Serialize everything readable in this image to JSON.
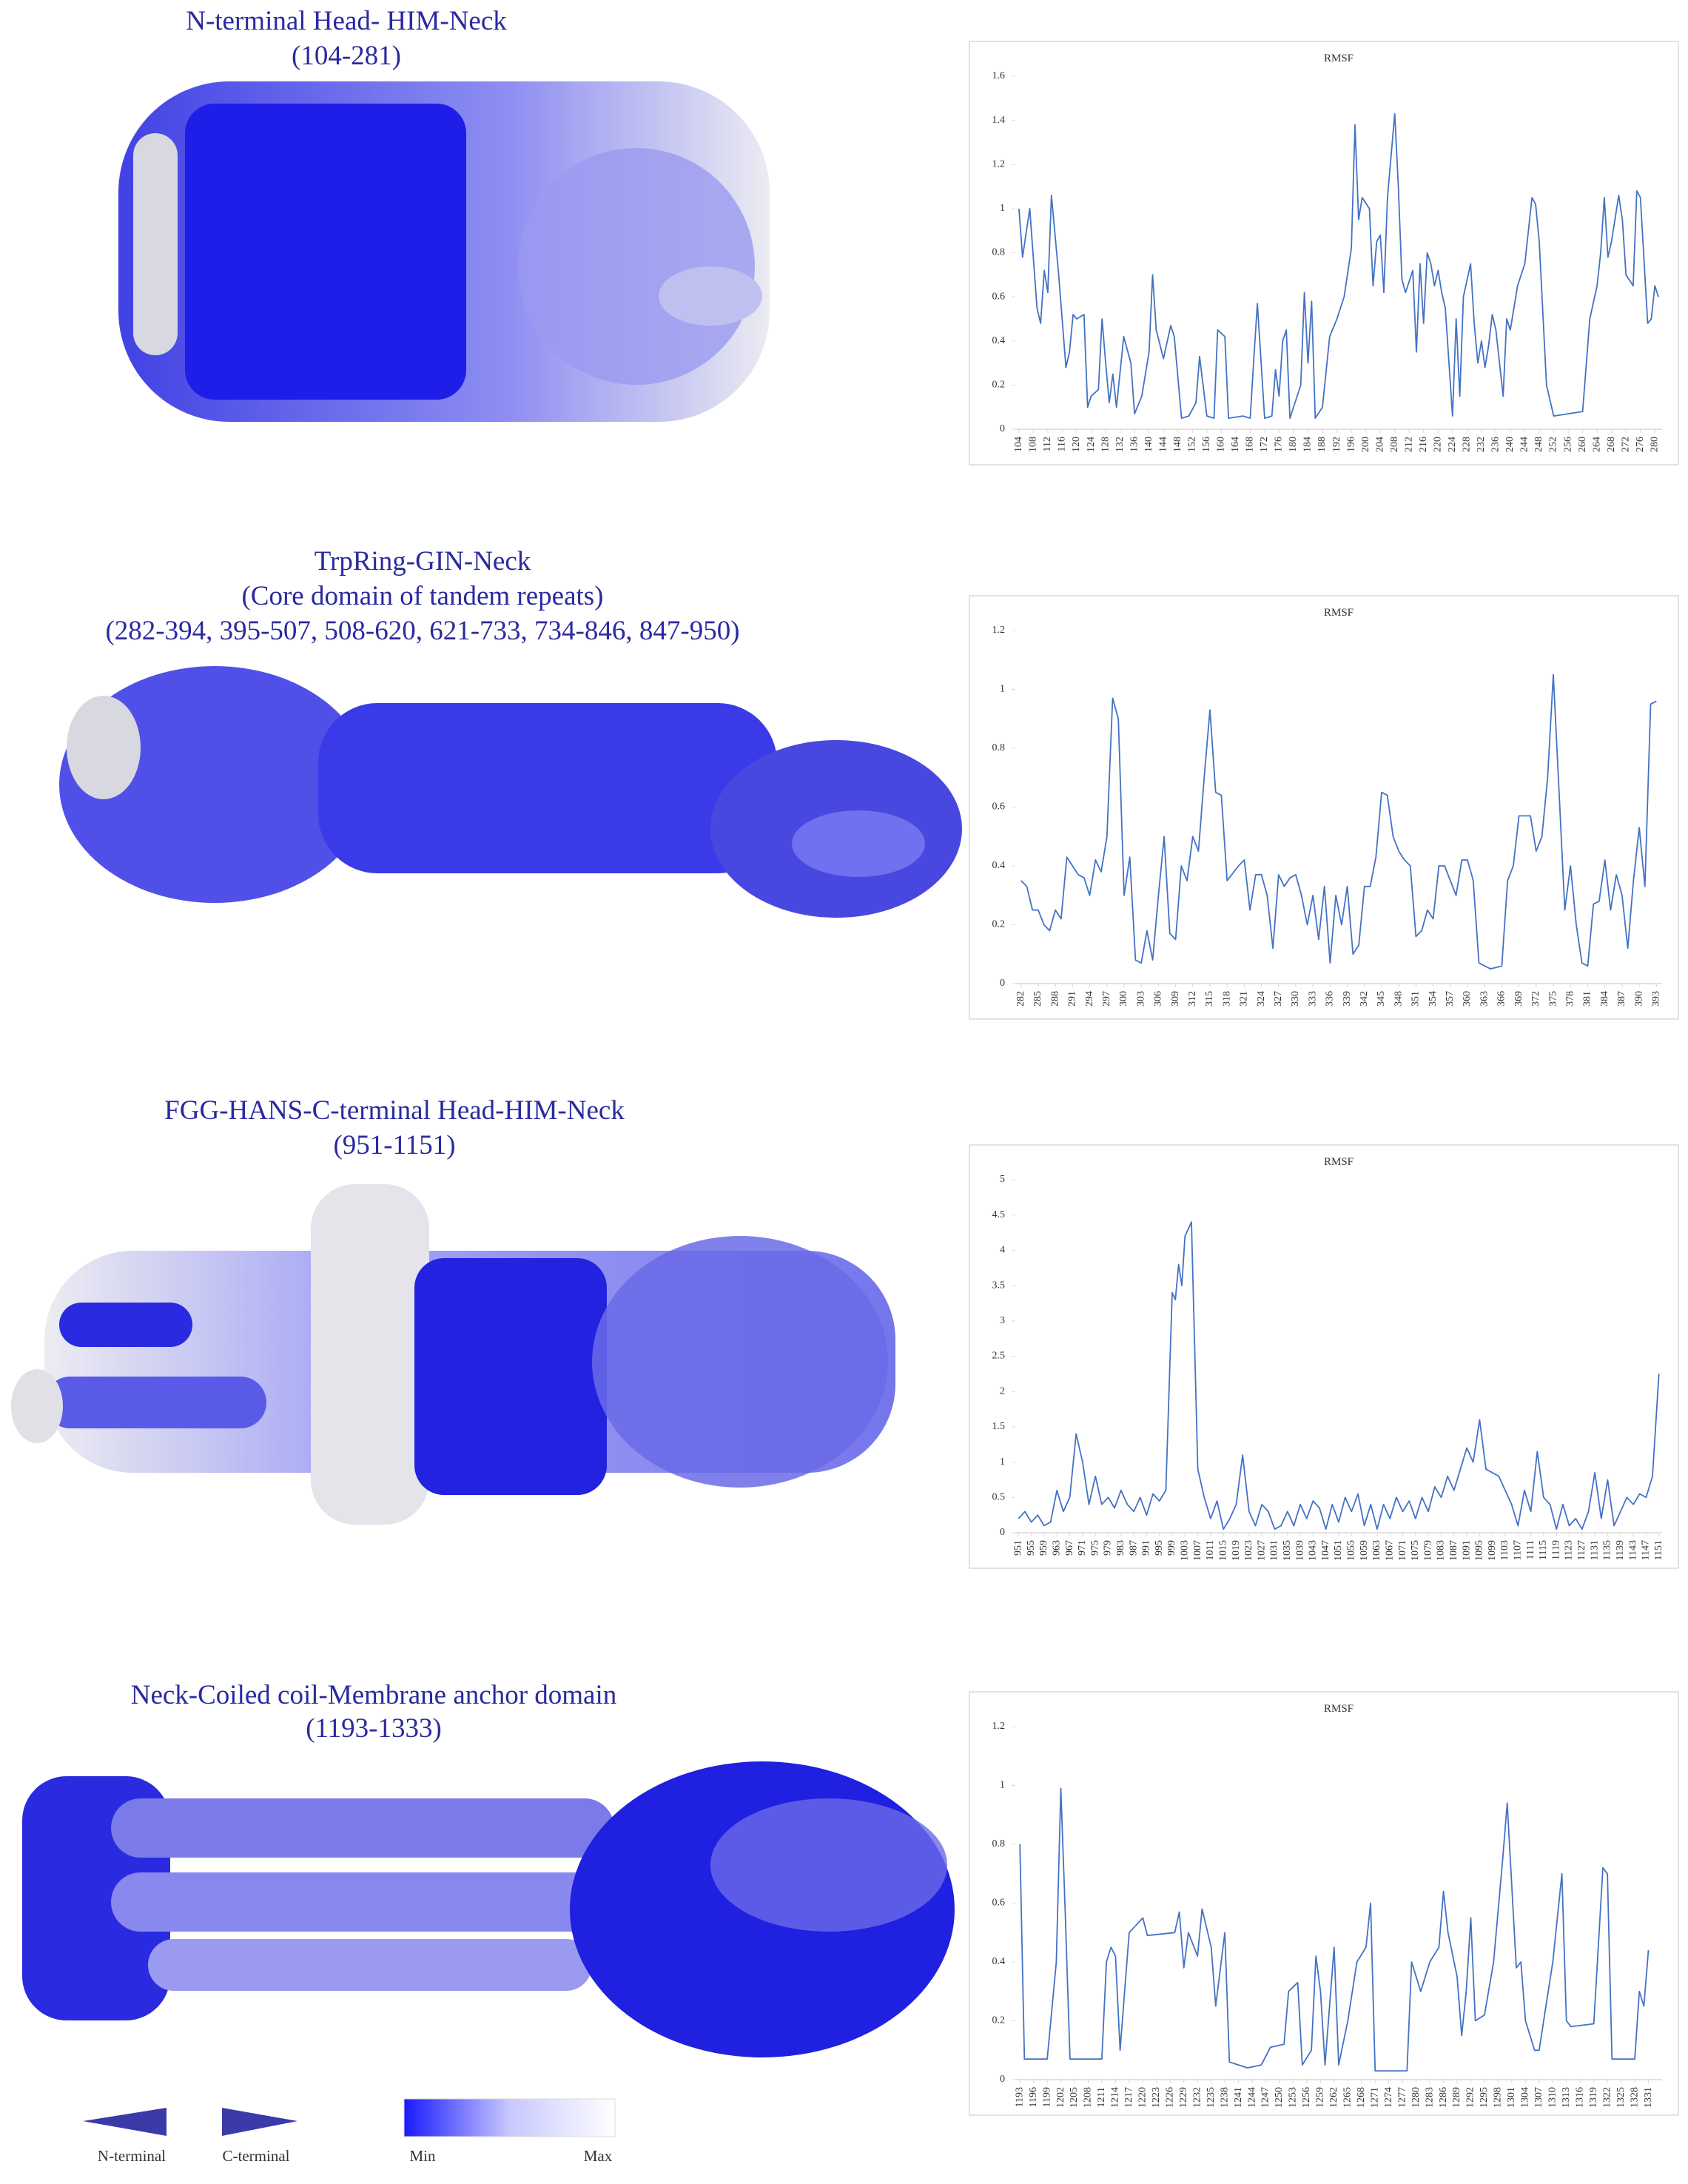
{
  "panels": [
    {
      "heading": [
        "N-terminal Head- HIM-Neck",
        "(104-281)"
      ]
    },
    {
      "heading": [
        "TrpRing-GIN-Neck",
        "(Core domain of tandem repeats)",
        "(282-394, 395-507, 508-620, 621-733, 734-846, 847-950)"
      ]
    },
    {
      "heading": [
        "FGG-HANS-C-terminal Head-HIM-Neck",
        "(951-1151)"
      ]
    },
    {
      "heading": [
        "Neck-Coiled coil-Membrane anchor domain",
        "(1193-1333)"
      ]
    }
  ],
  "legend": {
    "n_terminal": "N-terminal",
    "c_terminal": "C-terminal",
    "min": "Min",
    "max": "Max"
  },
  "chart_data": [
    {
      "type": "line",
      "title": "RMSF",
      "color": "#4472c4",
      "xlim": [
        103,
        282
      ],
      "ylim": [
        0,
        1.6
      ],
      "yticks": [
        0,
        0.2,
        0.4,
        0.6,
        0.8,
        1,
        1.2,
        1.4,
        1.6
      ],
      "xticks": [
        104,
        108,
        112,
        116,
        120,
        124,
        128,
        132,
        136,
        140,
        144,
        148,
        152,
        156,
        160,
        164,
        168,
        172,
        176,
        180,
        184,
        188,
        192,
        196,
        200,
        204,
        208,
        212,
        216,
        220,
        224,
        228,
        232,
        236,
        240,
        244,
        248,
        252,
        256,
        260,
        264,
        268,
        272,
        276,
        280
      ],
      "x": [
        104,
        105,
        107,
        109,
        110,
        111,
        112,
        113,
        115,
        117,
        118,
        119,
        120,
        122,
        123,
        124,
        126,
        127,
        128,
        129,
        130,
        131,
        133,
        135,
        136,
        138,
        140,
        141,
        142,
        144,
        146,
        147,
        149,
        151,
        153,
        154,
        156,
        158,
        159,
        161,
        162,
        166,
        168,
        169,
        170,
        172,
        174,
        175,
        176,
        177,
        178,
        179,
        182,
        183,
        184,
        185,
        186,
        188,
        190,
        192,
        194,
        196,
        197,
        198,
        199,
        201,
        202,
        203,
        204,
        205,
        206,
        208,
        209,
        210,
        211,
        213,
        214,
        215,
        216,
        217,
        218,
        219,
        220,
        221,
        222,
        224,
        225,
        226,
        227,
        229,
        230,
        231,
        232,
        233,
        234,
        235,
        236,
        238,
        239,
        240,
        242,
        244,
        246,
        247,
        248,
        250,
        252,
        260,
        262,
        264,
        265,
        266,
        267,
        268,
        270,
        271,
        272,
        274,
        275,
        276,
        278,
        279,
        280,
        281
      ],
      "values": [
        1.0,
        0.78,
        1.0,
        0.55,
        0.48,
        0.72,
        0.62,
        1.06,
        0.7,
        0.28,
        0.35,
        0.52,
        0.5,
        0.52,
        0.1,
        0.15,
        0.18,
        0.5,
        0.3,
        0.12,
        0.25,
        0.1,
        0.42,
        0.3,
        0.07,
        0.15,
        0.35,
        0.7,
        0.45,
        0.32,
        0.47,
        0.42,
        0.05,
        0.06,
        0.12,
        0.33,
        0.06,
        0.05,
        0.45,
        0.42,
        0.05,
        0.06,
        0.05,
        0.32,
        0.57,
        0.05,
        0.06,
        0.27,
        0.15,
        0.4,
        0.45,
        0.05,
        0.2,
        0.62,
        0.3,
        0.58,
        0.05,
        0.1,
        0.42,
        0.5,
        0.6,
        0.82,
        1.38,
        0.95,
        1.05,
        1.0,
        0.65,
        0.85,
        0.88,
        0.62,
        1.05,
        1.43,
        1.1,
        0.68,
        0.62,
        0.72,
        0.35,
        0.75,
        0.48,
        0.8,
        0.75,
        0.65,
        0.72,
        0.62,
        0.55,
        0.06,
        0.5,
        0.15,
        0.6,
        0.75,
        0.48,
        0.3,
        0.4,
        0.28,
        0.38,
        0.52,
        0.45,
        0.15,
        0.5,
        0.45,
        0.65,
        0.75,
        1.05,
        1.02,
        0.85,
        0.2,
        0.06,
        0.08,
        0.5,
        0.65,
        0.8,
        1.05,
        0.78,
        0.85,
        1.06,
        0.95,
        0.7,
        0.65,
        1.08,
        1.05,
        0.48,
        0.5,
        0.65,
        0.6
      ]
    },
    {
      "type": "line",
      "title": "RMSF",
      "color": "#4472c4",
      "xlim": [
        281,
        394
      ],
      "ylim": [
        0,
        1.2
      ],
      "yticks": [
        0,
        0.2,
        0.4,
        0.6,
        0.8,
        1,
        1.2
      ],
      "xticks": [
        282,
        285,
        288,
        291,
        294,
        297,
        300,
        303,
        306,
        309,
        312,
        315,
        318,
        321,
        324,
        327,
        330,
        333,
        336,
        339,
        342,
        345,
        348,
        351,
        354,
        357,
        360,
        363,
        366,
        369,
        372,
        375,
        378,
        381,
        384,
        387,
        390,
        393
      ],
      "x": [
        282,
        283,
        284,
        285,
        286,
        287,
        288,
        289,
        290,
        291,
        292,
        293,
        294,
        295,
        296,
        297,
        298,
        299,
        300,
        301,
        302,
        303,
        304,
        305,
        306,
        307,
        308,
        309,
        310,
        311,
        312,
        313,
        314,
        315,
        316,
        317,
        318,
        320,
        321,
        322,
        323,
        324,
        325,
        326,
        327,
        328,
        329,
        330,
        331,
        332,
        333,
        334,
        335,
        336,
        337,
        338,
        339,
        340,
        341,
        342,
        343,
        344,
        345,
        346,
        347,
        348,
        349,
        350,
        351,
        352,
        353,
        354,
        355,
        356,
        358,
        359,
        360,
        361,
        362,
        364,
        366,
        367,
        368,
        369,
        371,
        372,
        373,
        374,
        375,
        376,
        377,
        378,
        379,
        380,
        381,
        382,
        383,
        384,
        385,
        386,
        387,
        388,
        389,
        390,
        391,
        392,
        393
      ],
      "values": [
        0.35,
        0.33,
        0.25,
        0.25,
        0.2,
        0.18,
        0.25,
        0.22,
        0.43,
        0.4,
        0.37,
        0.36,
        0.3,
        0.42,
        0.38,
        0.5,
        0.97,
        0.9,
        0.3,
        0.43,
        0.08,
        0.07,
        0.18,
        0.08,
        0.3,
        0.5,
        0.17,
        0.15,
        0.4,
        0.35,
        0.5,
        0.45,
        0.7,
        0.93,
        0.65,
        0.64,
        0.35,
        0.4,
        0.42,
        0.25,
        0.37,
        0.37,
        0.3,
        0.12,
        0.37,
        0.33,
        0.36,
        0.37,
        0.3,
        0.2,
        0.3,
        0.15,
        0.33,
        0.07,
        0.3,
        0.2,
        0.33,
        0.1,
        0.13,
        0.33,
        0.33,
        0.43,
        0.65,
        0.64,
        0.5,
        0.45,
        0.42,
        0.4,
        0.16,
        0.18,
        0.25,
        0.22,
        0.4,
        0.4,
        0.3,
        0.42,
        0.42,
        0.35,
        0.07,
        0.05,
        0.06,
        0.35,
        0.4,
        0.57,
        0.57,
        0.45,
        0.5,
        0.7,
        1.05,
        0.65,
        0.25,
        0.4,
        0.2,
        0.07,
        0.06,
        0.27,
        0.28,
        0.42,
        0.25,
        0.37,
        0.3,
        0.12,
        0.35,
        0.53,
        0.33,
        0.95,
        0.96
      ]
    },
    {
      "type": "line",
      "title": "RMSF",
      "color": "#4472c4",
      "xlim": [
        950,
        1152
      ],
      "ylim": [
        0,
        5
      ],
      "yticks": [
        0,
        0.5,
        1,
        1.5,
        2,
        2.5,
        3,
        3.5,
        4,
        4.5,
        5
      ],
      "xticks": [
        951,
        955,
        959,
        963,
        967,
        971,
        975,
        979,
        983,
        987,
        991,
        995,
        999,
        1003,
        1007,
        1011,
        1015,
        1019,
        1023,
        1027,
        1031,
        1035,
        1039,
        1043,
        1047,
        1051,
        1055,
        1059,
        1063,
        1067,
        1071,
        1075,
        1079,
        1083,
        1087,
        1091,
        1095,
        1099,
        1103,
        1107,
        1111,
        1115,
        1119,
        1123,
        1127,
        1131,
        1135,
        1139,
        1143,
        1147,
        1151
      ],
      "x": [
        951,
        953,
        955,
        957,
        959,
        961,
        963,
        965,
        967,
        969,
        971,
        973,
        975,
        977,
        979,
        981,
        983,
        985,
        987,
        989,
        991,
        993,
        995,
        997,
        999,
        1000,
        1001,
        1002,
        1003,
        1005,
        1007,
        1009,
        1011,
        1013,
        1015,
        1017,
        1019,
        1021,
        1023,
        1025,
        1027,
        1029,
        1031,
        1033,
        1035,
        1037,
        1039,
        1041,
        1043,
        1045,
        1047,
        1049,
        1051,
        1053,
        1055,
        1057,
        1059,
        1061,
        1063,
        1065,
        1067,
        1069,
        1071,
        1073,
        1075,
        1077,
        1079,
        1081,
        1083,
        1085,
        1087,
        1089,
        1091,
        1093,
        1095,
        1097,
        1099,
        1101,
        1103,
        1105,
        1107,
        1109,
        1111,
        1113,
        1115,
        1117,
        1119,
        1121,
        1123,
        1125,
        1127,
        1129,
        1131,
        1133,
        1135,
        1137,
        1139,
        1141,
        1143,
        1145,
        1147,
        1149,
        1151
      ],
      "values": [
        0.2,
        0.3,
        0.15,
        0.25,
        0.1,
        0.15,
        0.6,
        0.3,
        0.5,
        1.4,
        1.0,
        0.4,
        0.8,
        0.4,
        0.5,
        0.35,
        0.6,
        0.4,
        0.3,
        0.5,
        0.25,
        0.55,
        0.45,
        0.6,
        3.4,
        3.3,
        3.8,
        3.5,
        4.2,
        4.4,
        0.9,
        0.5,
        0.2,
        0.45,
        0.05,
        0.2,
        0.4,
        1.1,
        0.3,
        0.1,
        0.4,
        0.3,
        0.05,
        0.1,
        0.3,
        0.1,
        0.4,
        0.2,
        0.45,
        0.35,
        0.05,
        0.4,
        0.15,
        0.5,
        0.3,
        0.55,
        0.1,
        0.4,
        0.05,
        0.4,
        0.2,
        0.5,
        0.3,
        0.45,
        0.2,
        0.5,
        0.3,
        0.65,
        0.5,
        0.8,
        0.6,
        0.9,
        1.2,
        1.0,
        1.6,
        0.9,
        0.85,
        0.8,
        0.6,
        0.4,
        0.1,
        0.6,
        0.3,
        1.15,
        0.5,
        0.4,
        0.05,
        0.4,
        0.1,
        0.2,
        0.05,
        0.3,
        0.85,
        0.2,
        0.75,
        0.1,
        0.3,
        0.5,
        0.4,
        0.55,
        0.5,
        0.8,
        2.25
      ]
    },
    {
      "type": "line",
      "title": "RMSF",
      "color": "#4472c4",
      "xlim": [
        1192,
        1334
      ],
      "ylim": [
        0,
        1.2
      ],
      "yticks": [
        0,
        0.2,
        0.4,
        0.6,
        0.8,
        1,
        1.2
      ],
      "xticks": [
        1193,
        1196,
        1199,
        1202,
        1205,
        1208,
        1211,
        1214,
        1217,
        1220,
        1223,
        1226,
        1229,
        1232,
        1235,
        1238,
        1241,
        1244,
        1247,
        1250,
        1253,
        1256,
        1259,
        1262,
        1265,
        1268,
        1271,
        1274,
        1277,
        1280,
        1283,
        1286,
        1289,
        1292,
        1295,
        1298,
        1301,
        1304,
        1307,
        1310,
        1313,
        1316,
        1319,
        1322,
        1325,
        1328,
        1331
      ],
      "x": [
        1193,
        1194,
        1199,
        1201,
        1202,
        1203,
        1204,
        1211,
        1212,
        1213,
        1214,
        1215,
        1216,
        1217,
        1220,
        1221,
        1227,
        1228,
        1229,
        1230,
        1232,
        1233,
        1235,
        1236,
        1238,
        1239,
        1243,
        1246,
        1248,
        1251,
        1252,
        1254,
        1255,
        1257,
        1258,
        1259,
        1260,
        1262,
        1263,
        1265,
        1267,
        1269,
        1270,
        1271,
        1278,
        1279,
        1281,
        1283,
        1285,
        1286,
        1287,
        1289,
        1290,
        1291,
        1292,
        1293,
        1295,
        1297,
        1299,
        1300,
        1302,
        1303,
        1304,
        1306,
        1307,
        1309,
        1310,
        1312,
        1313,
        1314,
        1319,
        1321,
        1322,
        1323,
        1328,
        1329,
        1330,
        1331
      ],
      "values": [
        0.8,
        0.07,
        0.07,
        0.4,
        0.99,
        0.55,
        0.07,
        0.07,
        0.4,
        0.45,
        0.42,
        0.1,
        0.3,
        0.5,
        0.55,
        0.49,
        0.5,
        0.57,
        0.38,
        0.5,
        0.42,
        0.58,
        0.45,
        0.25,
        0.5,
        0.06,
        0.04,
        0.05,
        0.11,
        0.12,
        0.3,
        0.33,
        0.05,
        0.1,
        0.42,
        0.3,
        0.05,
        0.45,
        0.05,
        0.2,
        0.4,
        0.45,
        0.6,
        0.03,
        0.03,
        0.4,
        0.3,
        0.4,
        0.45,
        0.64,
        0.5,
        0.35,
        0.15,
        0.3,
        0.55,
        0.2,
        0.22,
        0.4,
        0.75,
        0.94,
        0.38,
        0.4,
        0.2,
        0.1,
        0.1,
        0.3,
        0.4,
        0.7,
        0.2,
        0.18,
        0.19,
        0.72,
        0.7,
        0.07,
        0.07,
        0.3,
        0.25,
        0.44
      ]
    }
  ]
}
